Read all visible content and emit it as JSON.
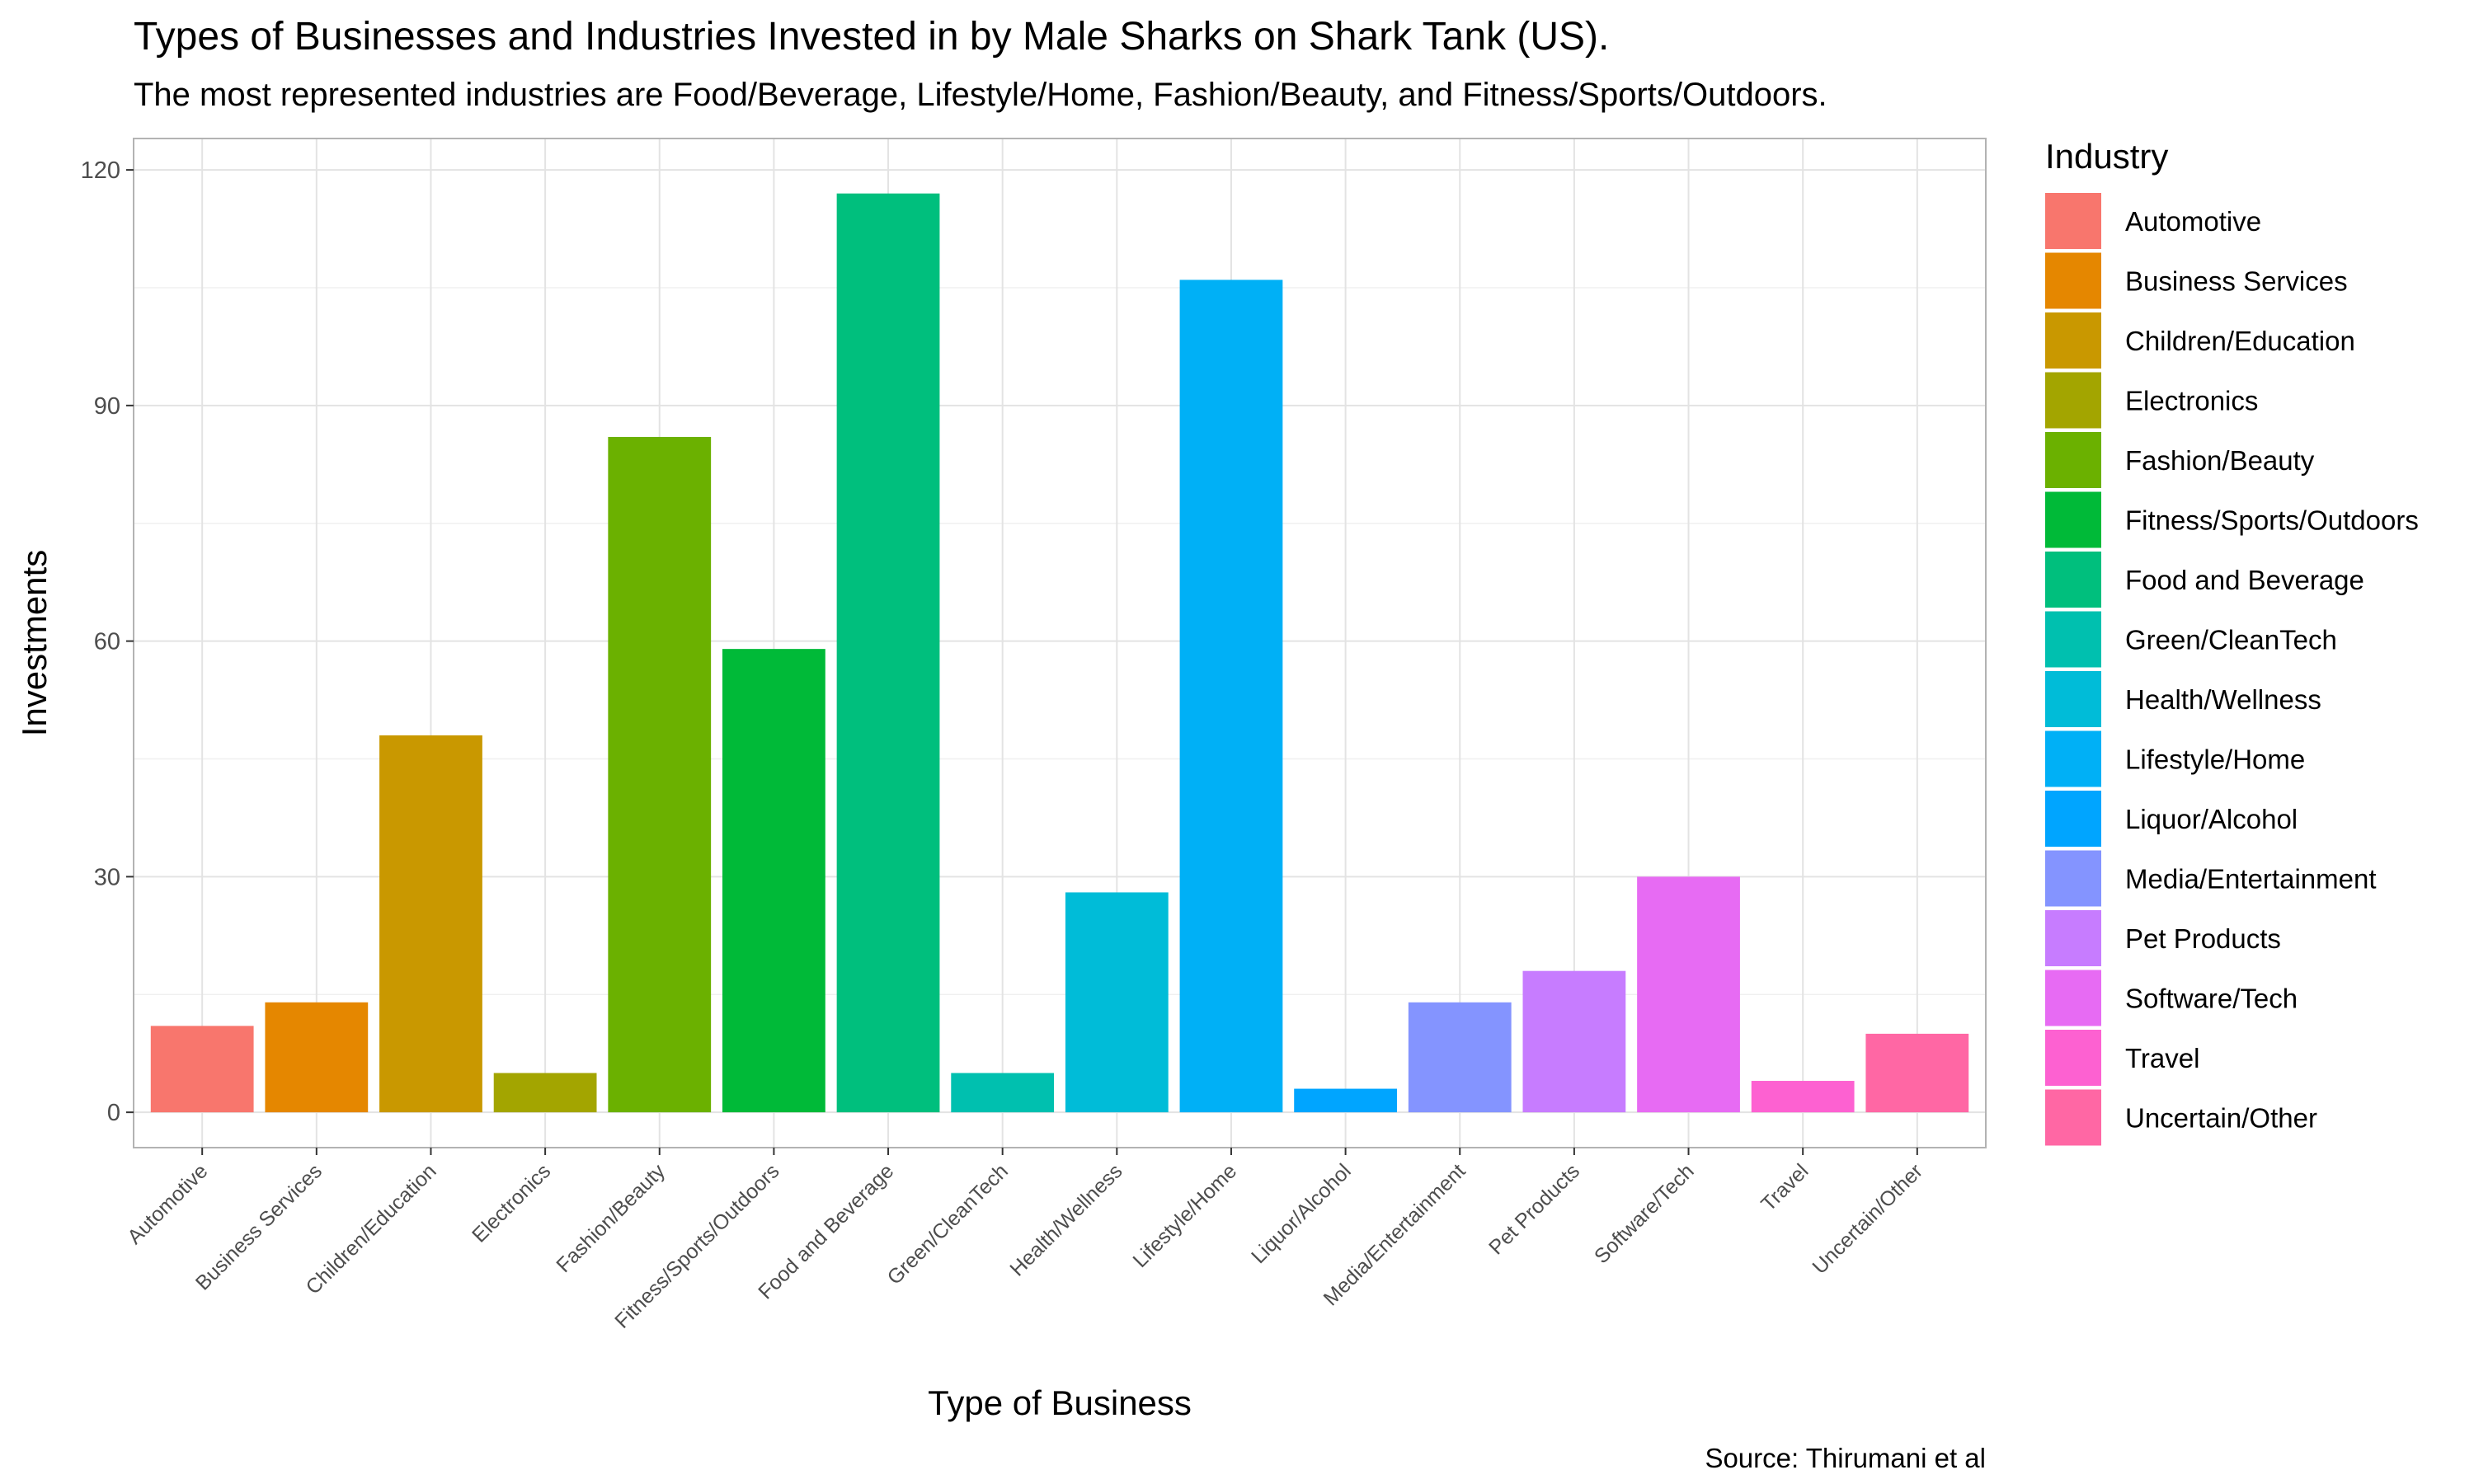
{
  "chart_data": {
    "type": "bar",
    "title": "Types of Businesses and Industries Invested in by Male Sharks on Shark Tank (US).",
    "subtitle": "The most represented industries are Food/Beverage, Lifestyle/Home, Fashion/Beauty, and Fitness/Sports/Outdoors.",
    "xlabel": "Type of Business",
    "ylabel": "Investments",
    "caption": "Source: Thirumani et al",
    "legend_title": "Industry",
    "legend_position": "right",
    "grid": true,
    "ylim": [
      -4.5,
      124
    ],
    "yticks": [
      0,
      30,
      60,
      90,
      120
    ],
    "categories": [
      "Automotive",
      "Business Services",
      "Children/Education",
      "Electronics",
      "Fashion/Beauty",
      "Fitness/Sports/Outdoors",
      "Food and Beverage",
      "Green/CleanTech",
      "Health/Wellness",
      "Lifestyle/Home",
      "Liquor/Alcohol",
      "Media/Entertainment",
      "Pet Products",
      "Software/Tech",
      "Travel",
      "Uncertain/Other"
    ],
    "values": [
      11,
      14,
      48,
      5,
      86,
      59,
      117,
      5,
      28,
      106,
      3,
      14,
      18,
      30,
      4,
      10
    ],
    "colors": [
      "#F8766D",
      "#E58700",
      "#C99800",
      "#A3A500",
      "#6BB100",
      "#00BA38",
      "#00BF7D",
      "#00C0AF",
      "#00BCD8",
      "#00B0F6",
      "#00A5FF",
      "#8494FF",
      "#C77CFF",
      "#E76BF3",
      "#FD61D1",
      "#FF67A4"
    ]
  }
}
